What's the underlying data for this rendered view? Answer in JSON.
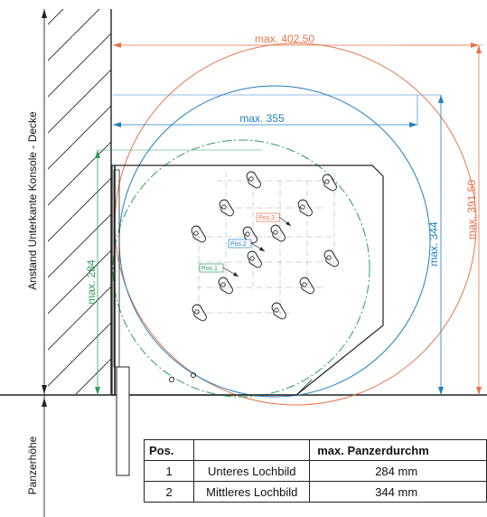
{
  "dimensions": {
    "width_label": "max. 402,50",
    "blue_width_label": "max. 355",
    "height_label_orange": "max. 391,50",
    "height_label_blue": "max. 344",
    "height_label_green": "max. 284"
  },
  "side_labels": {
    "upper": "Anstand Unterkante Konsole - Decke",
    "lower": "Panzerhöhe"
  },
  "positions": {
    "pos1": "Pos.1",
    "pos2": "Pos.2",
    "pos3": "Pos.3"
  },
  "table": {
    "headers": [
      "Pos.",
      "",
      "max. Panzerdurchm"
    ],
    "rows": [
      [
        "1",
        "Unteres Lochbild",
        "284 mm"
      ],
      [
        "2",
        "Mittleres Lochbild",
        "344 mm"
      ]
    ]
  },
  "colors": {
    "orange": "#e8734a",
    "blue": "#1f7fbf",
    "green": "#2e9e5a",
    "line": "#222222"
  }
}
